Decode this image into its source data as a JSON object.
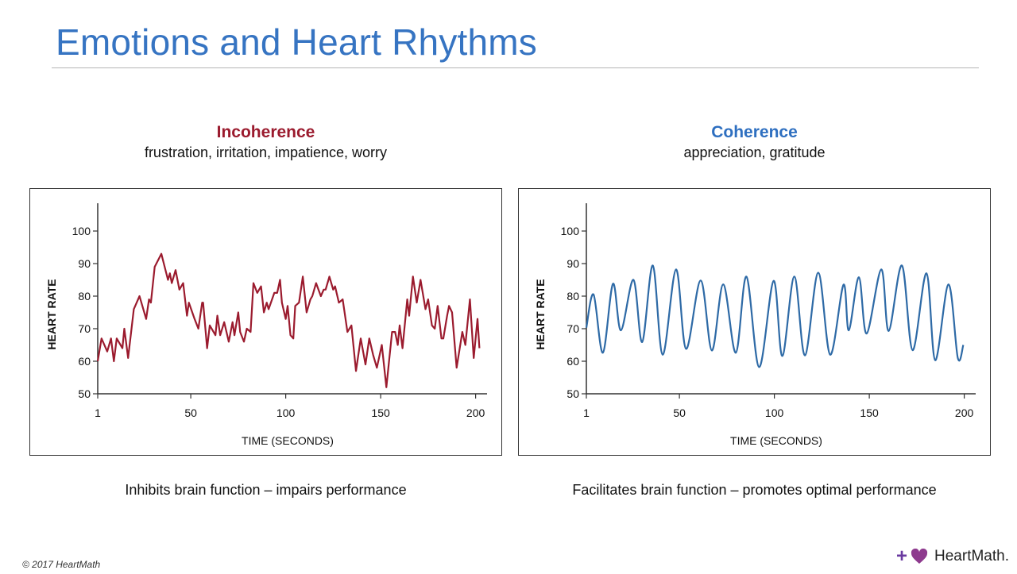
{
  "slide": {
    "title": "Emotions and Heart Rhythms",
    "copyright": "© 2017 HeartMath",
    "logo_text": "HeartMath."
  },
  "colors": {
    "title": "#3674c2",
    "incoherence": "#9b1b2e",
    "coherence": "#2e6aa6"
  },
  "panels": [
    {
      "heading": "Incoherence",
      "subheading": "frustration, irritation, impatience, worry",
      "caption": "Inhibits brain function – impairs performance"
    },
    {
      "heading": "Coherence",
      "subheading": "appreciation, gratitude",
      "caption": "Facilitates brain function – promotes optimal performance"
    }
  ],
  "chart_data": [
    {
      "type": "line",
      "title": "Incoherence",
      "xlabel": "TIME (SECONDS)",
      "ylabel": "HEART RATE",
      "xlim": [
        1,
        205
      ],
      "ylim": [
        50,
        105
      ],
      "xticks": [
        "1",
        "50",
        "100",
        "150",
        "200"
      ],
      "yticks": [
        "50",
        "60",
        "70",
        "80",
        "90",
        "100"
      ],
      "grid": false,
      "series": [
        {
          "name": "Heart rate",
          "color": "#9b1b2e",
          "x": [
            1,
            3,
            6,
            8,
            9.5,
            11,
            14,
            15,
            17,
            20,
            23,
            26.5,
            28,
            29,
            31,
            34.5,
            38,
            39,
            40,
            42,
            44,
            46,
            48,
            49,
            52,
            54,
            56,
            56.5,
            58.6,
            60,
            63,
            64,
            65.5,
            67.6,
            70,
            72,
            73,
            75,
            76,
            78,
            79.5,
            81.5,
            83,
            85,
            87,
            88.5,
            90,
            91,
            94,
            95.5,
            97,
            98,
            100,
            101,
            102.5,
            104,
            105,
            107,
            109,
            111,
            113,
            114,
            116,
            118.5,
            120,
            121,
            123,
            125,
            126,
            128,
            130,
            132.5,
            134.6,
            137,
            139.5,
            142,
            144,
            146,
            148,
            150.6,
            153,
            156,
            157.6,
            159,
            160,
            161.5,
            164,
            165,
            167,
            169,
            171,
            173.6,
            175,
            177,
            178.5,
            180,
            182,
            183,
            185,
            186,
            187.6,
            190,
            193,
            194.6,
            197,
            199,
            201,
            202
          ],
          "y": [
            60,
            67,
            63,
            67,
            60,
            67,
            64,
            70,
            61,
            76,
            80,
            73,
            79,
            78,
            89,
            93,
            85,
            87,
            84,
            88,
            82,
            84,
            74,
            78,
            73,
            70,
            78,
            78,
            64,
            71,
            68,
            74,
            68,
            72,
            66,
            72,
            68,
            75,
            69,
            66,
            70,
            69,
            84,
            81,
            83,
            75,
            78,
            76,
            81,
            81,
            85,
            78,
            73,
            77,
            68,
            67,
            77,
            78,
            86,
            75,
            79,
            80,
            84,
            80,
            82,
            82,
            86,
            82,
            83,
            78,
            79,
            69,
            71,
            57,
            67,
            59,
            67,
            62,
            58,
            65,
            52,
            69,
            69,
            65,
            71,
            64,
            79,
            74,
            86,
            78,
            85,
            76,
            79,
            71,
            70,
            77,
            67,
            67,
            74,
            77,
            75,
            58,
            69,
            65,
            79,
            61,
            73,
            64
          ]
        }
      ]
    },
    {
      "type": "line",
      "title": "Coherence",
      "xlabel": "TIME (SECONDS)",
      "ylabel": "HEART RATE",
      "xlim": [
        1,
        205
      ],
      "ylim": [
        50,
        105
      ],
      "xticks": [
        "1",
        "50",
        "100",
        "150",
        "200"
      ],
      "yticks": [
        "50",
        "60",
        "70",
        "80",
        "90",
        "100"
      ],
      "grid": false,
      "series": [
        {
          "name": "Heart rate",
          "color": "#2e6aa6",
          "x": [
            1,
            4.8,
            9.7,
            15,
            19.2,
            25.8,
            30.4,
            36,
            41.2,
            48.2,
            53.5,
            61.2,
            67.1,
            73.1,
            79.7,
            85.3,
            92,
            99.6,
            104.2,
            110.5,
            116.1,
            123.1,
            129.4,
            136.4,
            139.2,
            144.5,
            148.6,
            156.3,
            160.2,
            167.2,
            172.8,
            180.1,
            184.7,
            191.7,
            196.6,
            199.5
          ],
          "y": [
            70.3,
            80.5,
            62.6,
            83.8,
            69.5,
            85,
            65.9,
            89.4,
            62,
            88.2,
            63.8,
            84.8,
            63.3,
            83.6,
            62.6,
            86,
            58.2,
            84.7,
            61.6,
            86,
            61.8,
            87.2,
            62,
            83.5,
            69.5,
            85.8,
            68.5,
            88.2,
            69.3,
            89.4,
            63.4,
            87,
            60.3,
            83.6,
            61,
            65
          ]
        }
      ]
    }
  ]
}
